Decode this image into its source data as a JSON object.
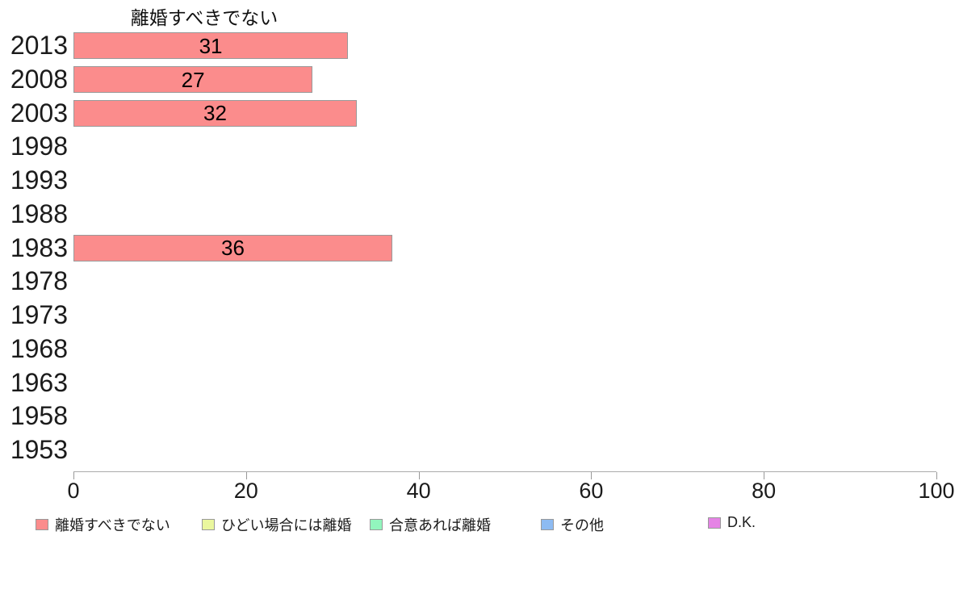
{
  "chart_data": {
    "type": "bar",
    "orientation": "horizontal",
    "title": "離婚すべきでない",
    "categories": [
      "2013",
      "2008",
      "2003",
      "1998",
      "1993",
      "1988",
      "1983",
      "1978",
      "1973",
      "1968",
      "1963",
      "1958",
      "1953"
    ],
    "values": [
      31,
      27,
      32,
      null,
      null,
      null,
      36,
      null,
      null,
      null,
      null,
      null,
      null
    ],
    "xlabel": "",
    "ylabel": "",
    "xlim": [
      0,
      100
    ],
    "x_ticks": [
      0,
      20,
      40,
      60,
      80,
      100
    ],
    "grid": false,
    "bar_color": "#FB8C8C",
    "bar_border_color": "#999999",
    "axis_color": "#ABABAB",
    "tick_color": "#999999",
    "legend_position": "bottom",
    "legend": [
      {
        "label": "離婚すべきでない",
        "color": "#FB8C8C"
      },
      {
        "label": "ひどい場合には離婚",
        "color": "#EAF79E"
      },
      {
        "label": "合意あれば離婚",
        "color": "#92F5BD"
      },
      {
        "label": "その他",
        "color": "#8DBBF2"
      },
      {
        "label": "D.K.",
        "color": "#E583E5"
      }
    ]
  }
}
